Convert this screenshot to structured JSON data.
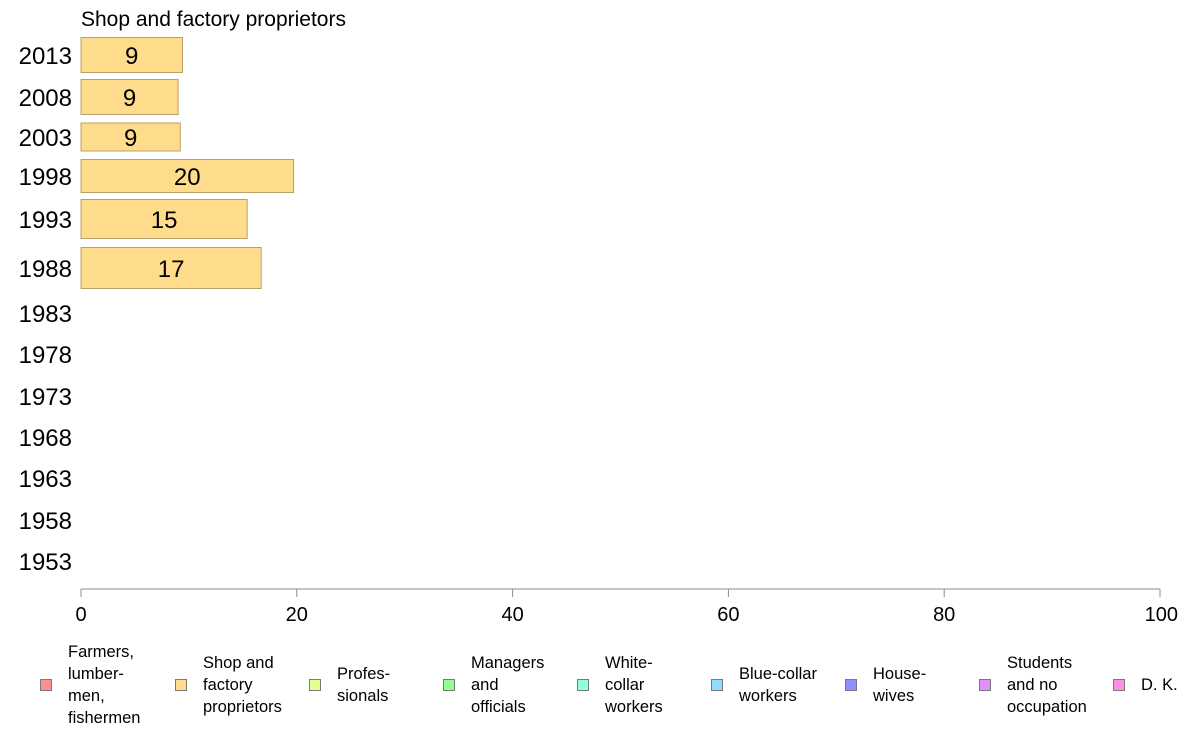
{
  "chart_data": {
    "type": "bar",
    "orientation": "horizontal",
    "title": "Shop and factory proprietors",
    "categories": [
      "2013",
      "2008",
      "2003",
      "1998",
      "1993",
      "1988",
      "1983",
      "1978",
      "1973",
      "1968",
      "1963",
      "1958",
      "1953"
    ],
    "series": [
      {
        "name": "Shop and factory proprietors",
        "values": [
          9.4,
          9.0,
          9.2,
          19.7,
          15.4,
          16.7,
          null,
          null,
          null,
          null,
          null,
          null,
          null
        ],
        "labels": [
          "9",
          "9",
          "9",
          "20",
          "15",
          "17",
          null,
          null,
          null,
          null,
          null,
          null,
          null
        ],
        "color": "#ffdc8c"
      }
    ],
    "xlim": [
      0,
      100
    ],
    "xticks": [
      "0",
      "20",
      "40",
      "60",
      "80",
      "100"
    ],
    "grid": false,
    "legend_position": "bottom"
  },
  "legend": [
    {
      "label": "Farmers,\nlumber-\nmen,\nfishermen",
      "color": "#ff8f8f"
    },
    {
      "label": "Shop and\nfactory\nproprietors",
      "color": "#ffdc8c"
    },
    {
      "label": "Profes-\nsionals",
      "color": "#e3ff8f"
    },
    {
      "label": "Managers\nand\nofficials",
      "color": "#8fff8f"
    },
    {
      "label": "White-\ncollar\nworkers",
      "color": "#8fffe0"
    },
    {
      "label": "Blue-collar\nworkers",
      "color": "#8fdcff"
    },
    {
      "label": "House-\nwives",
      "color": "#8f8fff"
    },
    {
      "label": "Students\nand no\noccupation",
      "color": "#e08fff"
    },
    {
      "label": "D. K.",
      "color": "#ff8fe0"
    }
  ],
  "colors": {
    "bar_border": "#b8a06a",
    "axis": "#8c8c8c"
  }
}
